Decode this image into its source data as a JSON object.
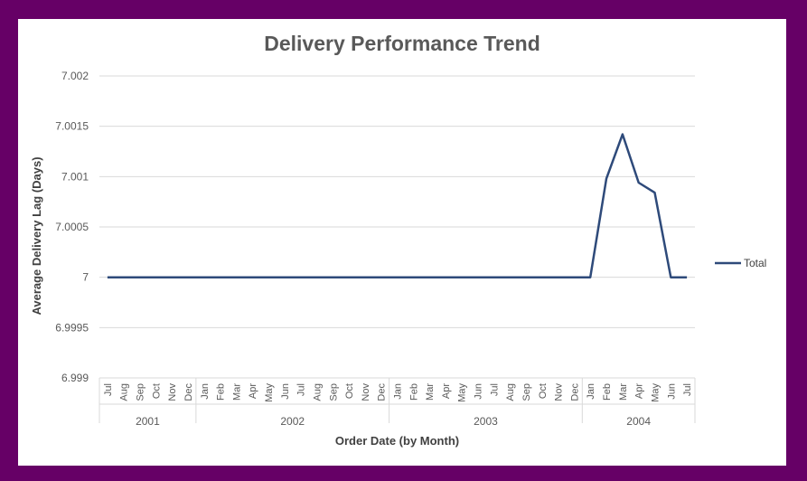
{
  "chart_data": {
    "type": "line",
    "title": "Delivery Performance Trend",
    "xlabel": "Order Date (by Month)",
    "ylabel": "Average Delivery Lag (Days)",
    "ylim": [
      6.999,
      7.002
    ],
    "yticks": [
      6.999,
      6.9995,
      7,
      7.0005,
      7.001,
      7.0015,
      7.002
    ],
    "ytick_labels": [
      "6.999",
      "6.9995",
      "7",
      "7.0005",
      "7.001",
      "7.0015",
      "7.002"
    ],
    "grid": true,
    "legend_position": "right",
    "categories": [
      "Jul",
      "Aug",
      "Sep",
      "Oct",
      "Nov",
      "Dec",
      "Jan",
      "Feb",
      "Mar",
      "Apr",
      "May",
      "Jun",
      "Jul",
      "Aug",
      "Sep",
      "Oct",
      "Nov",
      "Dec",
      "Jan",
      "Feb",
      "Mar",
      "Apr",
      "May",
      "Jun",
      "Jul",
      "Aug",
      "Sep",
      "Oct",
      "Nov",
      "Dec",
      "Jan",
      "Feb",
      "Mar",
      "Apr",
      "May",
      "Jun",
      "Jul"
    ],
    "year_groups": [
      {
        "label": "2001",
        "count": 6
      },
      {
        "label": "2002",
        "count": 12
      },
      {
        "label": "2003",
        "count": 12
      },
      {
        "label": "2004",
        "count": 7
      }
    ],
    "series": [
      {
        "name": "Total",
        "color": "#2e4a7a",
        "values": [
          7,
          7,
          7,
          7,
          7,
          7,
          7,
          7,
          7,
          7,
          7,
          7,
          7,
          7,
          7,
          7,
          7,
          7,
          7,
          7,
          7,
          7,
          7,
          7,
          7,
          7,
          7,
          7,
          7,
          7,
          7,
          7.00098,
          7.00142,
          7.00094,
          7.00084,
          7,
          7
        ]
      }
    ]
  }
}
